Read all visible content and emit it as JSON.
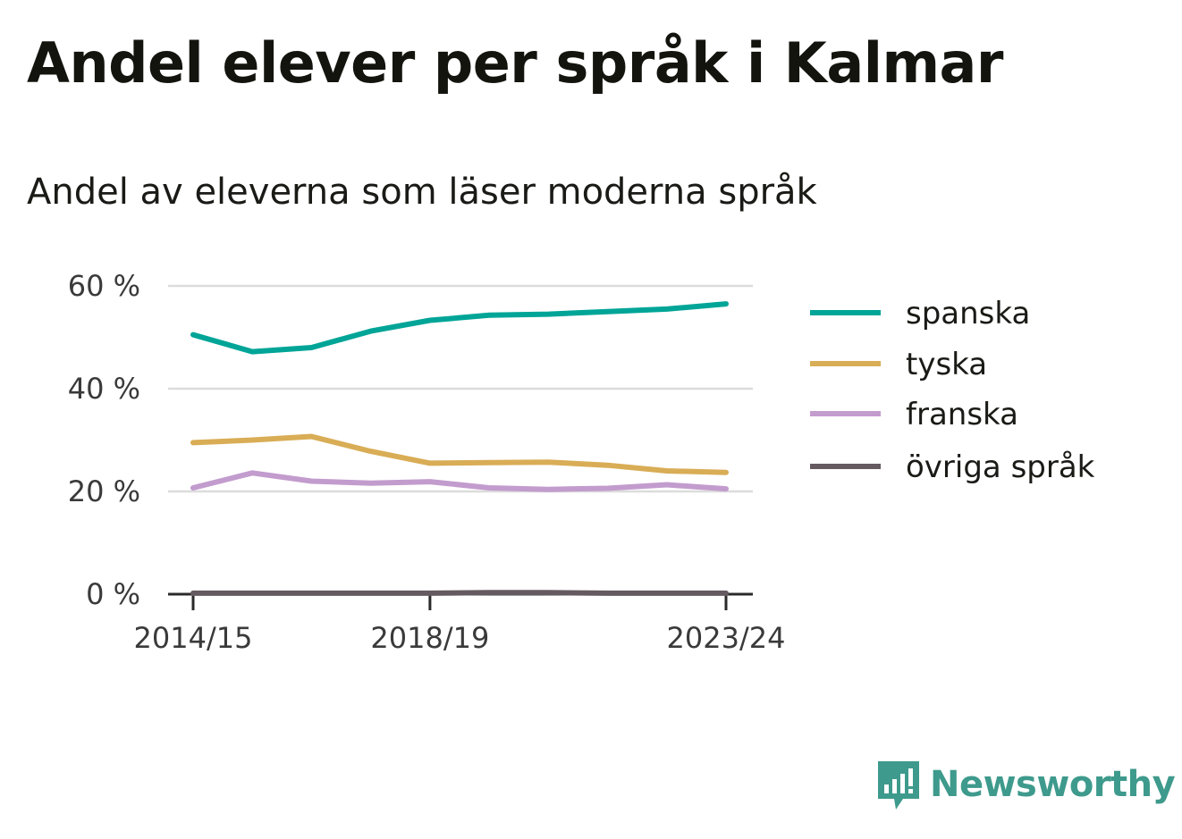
{
  "title": "Andel elever per språk i Kalmar",
  "subtitle": "Andel av eleverna som läser moderna språk",
  "brand": {
    "name": "Newsworthy",
    "icon": "bar-chart-speech-bubble-icon",
    "color": "#3e9a8c"
  },
  "chart_data": {
    "type": "line",
    "x": [
      "2014/15",
      "2015/16",
      "2016/17",
      "2017/18",
      "2018/19",
      "2019/20",
      "2020/21",
      "2021/22",
      "2022/23",
      "2023/24"
    ],
    "x_tick_labels": [
      "2014/15",
      "2018/19",
      "2023/24"
    ],
    "y_ticks": [
      0,
      20,
      40,
      60
    ],
    "y_tick_labels": [
      "0 %",
      "20 %",
      "40 %",
      "60 %"
    ],
    "ylim": [
      0,
      60
    ],
    "grid": true,
    "legend_position": "right",
    "series": [
      {
        "name": "spanska",
        "color": "#00a597",
        "values": [
          50.5,
          47.2,
          48.0,
          51.2,
          53.3,
          54.3,
          54.5,
          55.0,
          55.5,
          56.5
        ]
      },
      {
        "name": "tyska",
        "color": "#d9ad56",
        "values": [
          29.5,
          30.0,
          30.7,
          27.8,
          25.5,
          25.6,
          25.7,
          25.1,
          24.0,
          23.7
        ]
      },
      {
        "name": "franska",
        "color": "#c39cce",
        "values": [
          20.7,
          23.6,
          22.0,
          21.6,
          21.9,
          20.7,
          20.4,
          20.6,
          21.3,
          20.5
        ]
      },
      {
        "name": "övriga språk",
        "color": "#655a60",
        "values": [
          0.2,
          0.2,
          0.2,
          0.2,
          0.2,
          0.3,
          0.3,
          0.2,
          0.2,
          0.2
        ]
      }
    ]
  }
}
